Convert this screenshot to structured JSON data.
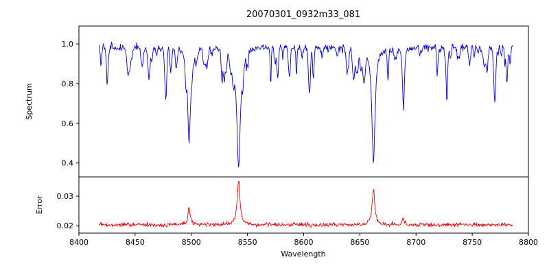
{
  "chart_data": {
    "type": "line",
    "title": "20070301_0932m33_081",
    "xlabel": "Wavelength",
    "xlim": [
      8400,
      8800
    ],
    "xticks": [
      8400,
      8450,
      8500,
      8550,
      8600,
      8650,
      8700,
      8750,
      8800
    ],
    "x_sample_range": [
      8418,
      8786
    ],
    "n_points": 740,
    "grid": false,
    "legend": "none",
    "panels": [
      {
        "name": "spectrum",
        "ylabel": "Spectrum",
        "color": "#0000cd",
        "ylim": [
          0.33,
          1.09
        ],
        "yticks": [
          "0.4",
          "0.6",
          "0.8",
          "1.0"
        ],
        "continuum": 0.985,
        "noise_sigma": 0.009,
        "major_absorption_lines": [
          {
            "center": 8498.0,
            "depth": 0.48,
            "width": 1.5
          },
          {
            "center": 8542.1,
            "depth": 0.62,
            "width": 1.9
          },
          {
            "center": 8662.1,
            "depth": 0.58,
            "width": 1.7
          },
          {
            "center": 8688.6,
            "depth": 0.21,
            "width": 1.0
          }
        ],
        "minor_lines": {
          "count": 90,
          "depth_range": [
            0.02,
            0.16
          ],
          "width_range": [
            0.4,
            1.1
          ],
          "seed": 1234
        },
        "noise_seed": 77
      },
      {
        "name": "error",
        "ylabel": "Error",
        "color": "#e60000",
        "ylim": [
          0.0175,
          0.0365
        ],
        "yticks": [
          "0.02",
          "0.03"
        ],
        "baseline": 0.0203,
        "noise_sigma": 0.00035,
        "peaks": [
          {
            "center": 8498.0,
            "amp": 0.0058,
            "width": 1.2
          },
          {
            "center": 8542.1,
            "amp": 0.0147,
            "width": 1.5
          },
          {
            "center": 8662.1,
            "amp": 0.0122,
            "width": 1.4
          },
          {
            "center": 8688.6,
            "amp": 0.0022,
            "width": 0.9
          }
        ],
        "noise_seed": 99
      }
    ]
  }
}
